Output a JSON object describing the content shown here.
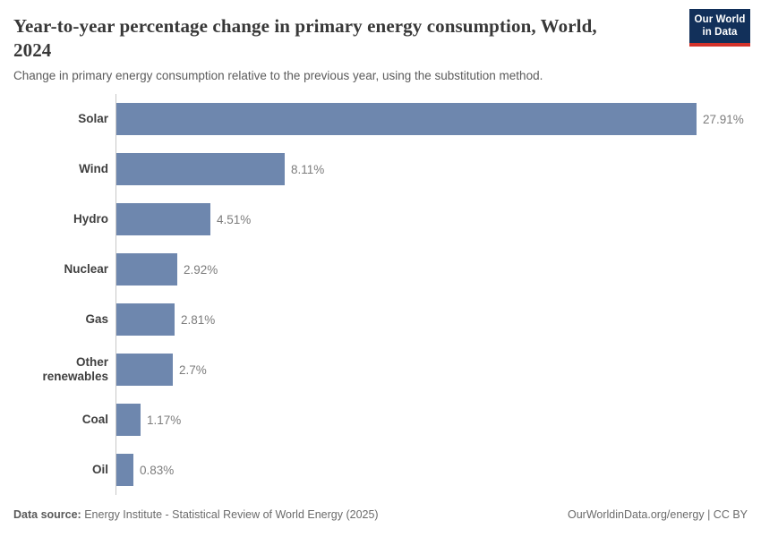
{
  "header": {
    "title": "Year-to-year percentage change in primary energy consumption, World, 2024",
    "subtitle": "Change in primary energy consumption relative to the previous year, using the substitution method.",
    "logo": {
      "line1": "Our World",
      "line2": "in Data",
      "bg_color": "#12305a",
      "accent_color": "#d3332b"
    }
  },
  "chart_data": {
    "type": "bar",
    "orientation": "horizontal",
    "title": "Year-to-year percentage change in primary energy consumption, World, 2024",
    "subtitle": "Change in primary energy consumption relative to the previous year, using the substitution method.",
    "categories": [
      "Solar",
      "Wind",
      "Hydro",
      "Nuclear",
      "Gas",
      "Other renewables",
      "Coal",
      "Oil"
    ],
    "values": [
      27.91,
      8.11,
      4.51,
      2.92,
      2.81,
      2.7,
      1.17,
      0.83
    ],
    "value_labels": [
      "27.91%",
      "8.11%",
      "4.51%",
      "2.92%",
      "2.81%",
      "2.7%",
      "1.17%",
      "0.83%"
    ],
    "unit": "%",
    "xlim": [
      0,
      29
    ],
    "bar_color": "#6e87ae",
    "axis_color": "#c8c8c8",
    "grid": false,
    "legend": false
  },
  "footer": {
    "datasource_label": "Data source:",
    "datasource_text": " Energy Institute - Statistical Review of World Energy (2025)",
    "credit": "OurWorldinData.org/energy | CC BY"
  }
}
